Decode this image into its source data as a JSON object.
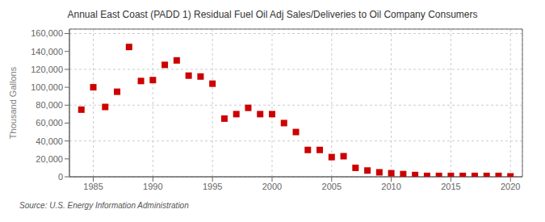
{
  "chart_data": {
    "type": "scatter",
    "title": "Annual East Coast (PADD 1) Residual Fuel Oil Adj Sales/Deliveries to Oil Company Consumers",
    "ylabel": "Thousand Gallons",
    "annotations": [
      "Source: U.S. Energy Information Administration"
    ],
    "color": "#cc0000",
    "marker": "square",
    "grid": true,
    "x": [
      1984,
      1985,
      1986,
      1987,
      1988,
      1989,
      1990,
      1991,
      1992,
      1993,
      1994,
      1995,
      1996,
      1997,
      1998,
      1999,
      2000,
      2001,
      2002,
      2003,
      2004,
      2005,
      2006,
      2007,
      2008,
      2009,
      2010,
      2011,
      2012,
      2013,
      2014,
      2015,
      2016,
      2017,
      2018,
      2019,
      2020
    ],
    "values": [
      75000,
      100000,
      78000,
      95000,
      145000,
      107000,
      108000,
      125000,
      130000,
      113000,
      112000,
      104000,
      65000,
      70000,
      77000,
      70000,
      70000,
      60000,
      50000,
      30000,
      30000,
      22000,
      23000,
      10000,
      7000,
      5000,
      4000,
      3000,
      2000,
      1000,
      1000,
      1000,
      1000,
      1000,
      1000,
      1000,
      500
    ],
    "xlim": [
      1983,
      2021
    ],
    "ylim": [
      0,
      165000
    ],
    "xticks": [
      1985,
      1990,
      1995,
      2000,
      2005,
      2010,
      2015,
      2020
    ],
    "yticks": [
      0,
      {
        "value": 20000,
        "label": "20,000"
      },
      {
        "value": 40000,
        "label": "40,000"
      },
      {
        "value": 60000,
        "label": "60,000"
      },
      {
        "value": 80000,
        "label": "80,000"
      },
      {
        "value": 100000,
        "label": "100,000"
      },
      {
        "value": 120000,
        "label": "120,000"
      },
      {
        "value": 140000,
        "label": "140,000"
      },
      {
        "value": 160000,
        "label": "160,000"
      }
    ]
  }
}
